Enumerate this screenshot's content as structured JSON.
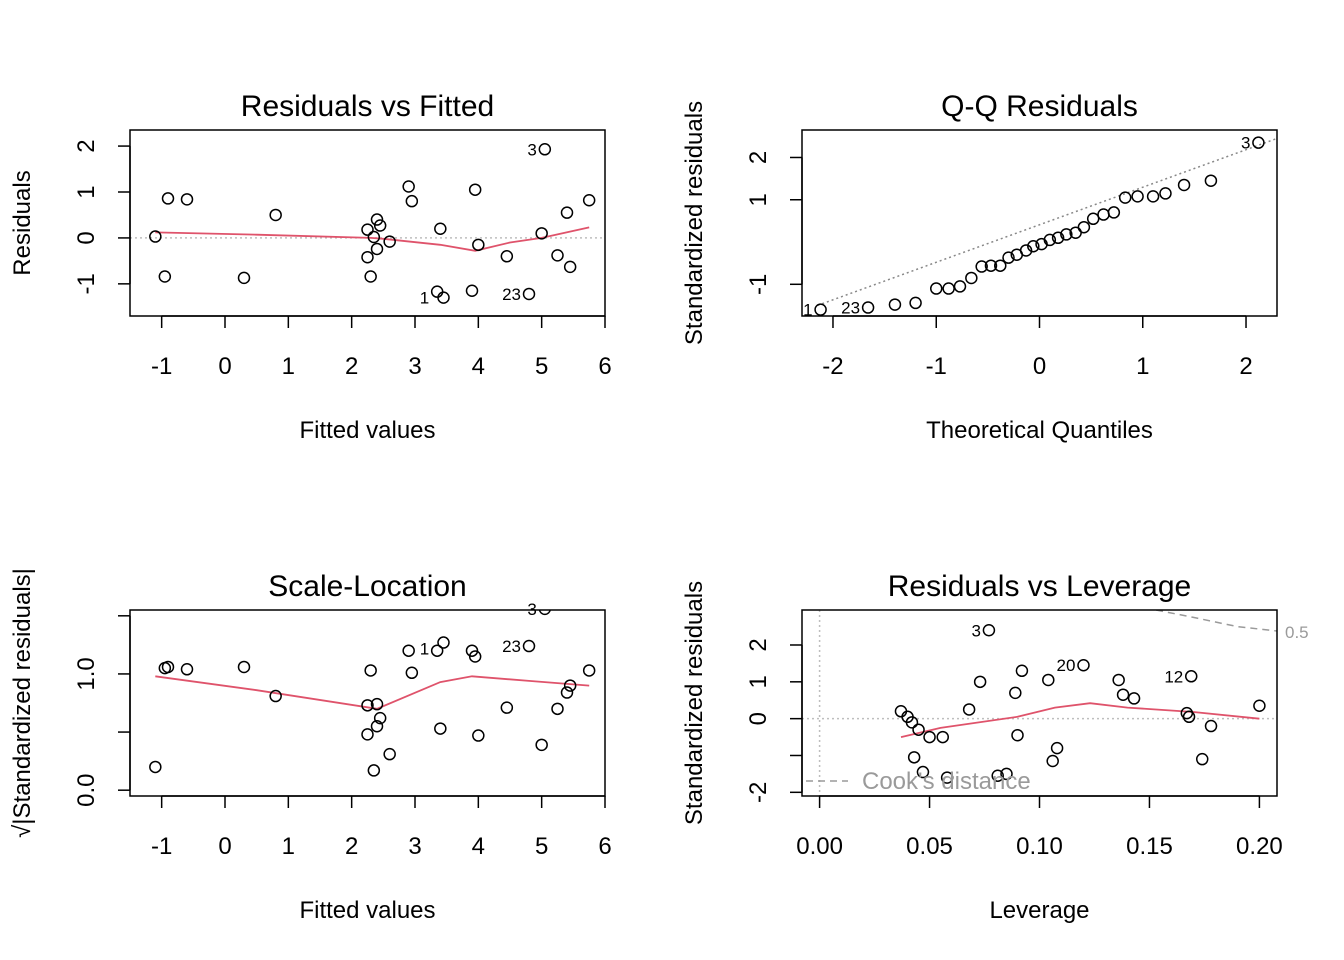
{
  "chart_data": [
    {
      "type": "scatter",
      "title": "Residuals vs Fitted",
      "xlabel": "Fitted values",
      "ylabel": "Residuals",
      "xlim": [
        -1.5,
        6.0
      ],
      "ylim": [
        -1.7,
        2.35
      ],
      "xticks": [
        -1,
        0,
        1,
        2,
        3,
        4,
        5,
        6
      ],
      "xtick_labels": [
        "-1",
        "0",
        "1",
        "2",
        "3",
        "4",
        "5",
        "6"
      ],
      "yticks": [
        -1,
        0,
        1,
        2
      ],
      "ytick_labels": [
        "-1",
        "0",
        "1",
        "2"
      ],
      "reference_line": {
        "y": 0,
        "style": "dotted",
        "color": "#bebebe"
      },
      "points": [
        [
          -1.1,
          0.03
        ],
        [
          -0.95,
          -0.84
        ],
        [
          -0.9,
          0.86
        ],
        [
          -0.6,
          0.84
        ],
        [
          0.3,
          -0.87
        ],
        [
          0.8,
          0.5
        ],
        [
          2.25,
          0.18
        ],
        [
          2.25,
          -0.42
        ],
        [
          2.3,
          -0.84
        ],
        [
          2.35,
          0.02
        ],
        [
          2.4,
          0.4
        ],
        [
          2.45,
          0.27
        ],
        [
          2.4,
          -0.24
        ],
        [
          2.6,
          -0.08
        ],
        [
          2.9,
          1.12
        ],
        [
          2.95,
          0.8
        ],
        [
          3.35,
          -1.17
        ],
        [
          3.45,
          -1.3
        ],
        [
          3.4,
          0.2
        ],
        [
          3.9,
          -1.15
        ],
        [
          3.95,
          1.05
        ],
        [
          4.0,
          -0.15
        ],
        [
          4.45,
          -0.4
        ],
        [
          4.8,
          -1.22
        ],
        [
          5.0,
          0.1
        ],
        [
          5.05,
          1.93
        ],
        [
          5.25,
          -0.38
        ],
        [
          5.4,
          0.55
        ],
        [
          5.45,
          -0.63
        ],
        [
          5.75,
          0.82
        ]
      ],
      "smoother": [
        [
          -1.1,
          0.12
        ],
        [
          0.5,
          0.07
        ],
        [
          2.3,
          0.0
        ],
        [
          2.5,
          -0.02
        ],
        [
          3.4,
          -0.15
        ],
        [
          3.95,
          -0.28
        ],
        [
          4.5,
          -0.1
        ],
        [
          5.0,
          0.0
        ],
        [
          5.75,
          0.23
        ]
      ],
      "smoother_color": "#DF536B",
      "annotations": [
        {
          "label": "3",
          "x": 5.05,
          "y": 1.93
        },
        {
          "label": "1",
          "x": 3.35,
          "y": -1.3
        },
        {
          "label": "23",
          "x": 4.8,
          "y": -1.22
        }
      ]
    },
    {
      "type": "scatter",
      "title": "Q-Q Residuals",
      "xlabel": "Theoretical Quantiles",
      "ylabel": "Standardized residuals",
      "xlim": [
        -2.3,
        2.3
      ],
      "ylim": [
        -1.75,
        2.65
      ],
      "xticks": [
        -2,
        -1,
        0,
        1,
        2
      ],
      "xtick_labels": [
        "-2",
        "-1",
        "0",
        "1",
        "2"
      ],
      "yticks": [
        -1,
        1,
        2
      ],
      "ytick_labels": [
        "-1",
        "1",
        "2"
      ],
      "reference_line": {
        "from": [
          -2.15,
          -1.5
        ],
        "to": [
          2.3,
          2.45
        ],
        "style": "dotted",
        "color": "#888888"
      },
      "points": [
        [
          -2.12,
          -1.6
        ],
        [
          -1.66,
          -1.55
        ],
        [
          -1.4,
          -1.48
        ],
        [
          -1.2,
          -1.44
        ],
        [
          -1.0,
          -1.1
        ],
        [
          -0.88,
          -1.1
        ],
        [
          -0.77,
          -1.05
        ],
        [
          -0.66,
          -0.85
        ],
        [
          -0.56,
          -0.58
        ],
        [
          -0.47,
          -0.56
        ],
        [
          -0.38,
          -0.56
        ],
        [
          -0.3,
          -0.37
        ],
        [
          -0.22,
          -0.3
        ],
        [
          -0.13,
          -0.2
        ],
        [
          -0.06,
          -0.1
        ],
        [
          0.02,
          -0.05
        ],
        [
          0.1,
          0.05
        ],
        [
          0.18,
          0.1
        ],
        [
          0.26,
          0.18
        ],
        [
          0.35,
          0.22
        ],
        [
          0.43,
          0.35
        ],
        [
          0.52,
          0.55
        ],
        [
          0.62,
          0.65
        ],
        [
          0.72,
          0.7
        ],
        [
          0.83,
          1.05
        ],
        [
          0.95,
          1.08
        ],
        [
          1.1,
          1.08
        ],
        [
          1.22,
          1.15
        ],
        [
          1.4,
          1.35
        ],
        [
          1.66,
          1.45
        ],
        [
          2.12,
          2.35
        ]
      ],
      "annotations": [
        {
          "label": "3",
          "x": 2.12,
          "y": 2.35
        },
        {
          "label": "1",
          "x": -2.12,
          "y": -1.6
        },
        {
          "label": "23",
          "x": -1.66,
          "y": -1.55
        }
      ]
    },
    {
      "type": "scatter",
      "title": "Scale-Location",
      "xlabel": "Fitted values",
      "ylabel": "√|Standardized residuals|",
      "xlim": [
        -1.5,
        6.0
      ],
      "ylim": [
        -0.05,
        1.55
      ],
      "xticks": [
        -1,
        0,
        1,
        2,
        3,
        4,
        5,
        6
      ],
      "xtick_labels": [
        "-1",
        "0",
        "1",
        "2",
        "3",
        "4",
        "5",
        "6"
      ],
      "yticks": [
        0.0,
        0.5,
        1.0,
        1.5
      ],
      "ytick_labels": [
        "0.0",
        "",
        "1.0",
        ""
      ],
      "points": [
        [
          -1.1,
          0.2
        ],
        [
          -0.95,
          1.05
        ],
        [
          -0.9,
          1.06
        ],
        [
          -0.6,
          1.04
        ],
        [
          0.3,
          1.06
        ],
        [
          0.8,
          0.81
        ],
        [
          2.25,
          0.73
        ],
        [
          2.25,
          0.48
        ],
        [
          2.3,
          1.03
        ],
        [
          2.35,
          0.17
        ],
        [
          2.4,
          0.74
        ],
        [
          2.45,
          0.62
        ],
        [
          2.4,
          0.55
        ],
        [
          2.6,
          0.31
        ],
        [
          2.9,
          1.2
        ],
        [
          2.95,
          1.01
        ],
        [
          3.35,
          1.2
        ],
        [
          3.45,
          1.27
        ],
        [
          3.4,
          0.53
        ],
        [
          3.9,
          1.2
        ],
        [
          3.95,
          1.15
        ],
        [
          4.0,
          0.47
        ],
        [
          4.45,
          0.71
        ],
        [
          4.8,
          1.24
        ],
        [
          5.0,
          0.39
        ],
        [
          5.05,
          1.56
        ],
        [
          5.25,
          0.7
        ],
        [
          5.4,
          0.84
        ],
        [
          5.45,
          0.9
        ],
        [
          5.75,
          1.03
        ]
      ],
      "smoother": [
        [
          -1.1,
          0.98
        ],
        [
          0.5,
          0.86
        ],
        [
          2.4,
          0.7
        ],
        [
          3.4,
          0.93
        ],
        [
          3.9,
          0.98
        ],
        [
          4.8,
          0.94
        ],
        [
          5.75,
          0.9
        ]
      ],
      "smoother_color": "#DF536B",
      "annotations": [
        {
          "label": "3",
          "x": 5.05,
          "y": 1.56
        },
        {
          "label": "1",
          "x": 3.35,
          "y": 1.22
        },
        {
          "label": "23",
          "x": 4.8,
          "y": 1.24
        }
      ]
    },
    {
      "type": "scatter",
      "title": "Residuals vs Leverage",
      "xlabel": "Leverage",
      "ylabel": "Standardized residuals",
      "xlim": [
        -0.008,
        0.208
      ],
      "ylim": [
        -2.1,
        2.95
      ],
      "xticks": [
        0.0,
        0.05,
        0.1,
        0.15,
        0.2
      ],
      "xtick_labels": [
        "0.00",
        "0.05",
        "0.10",
        "0.15",
        "0.20"
      ],
      "yticks": [
        -2,
        -1,
        0,
        1,
        2
      ],
      "ytick_labels": [
        "-2",
        "",
        "0",
        "1",
        "2"
      ],
      "reference_lines": [
        {
          "y": 0,
          "style": "dotted",
          "color": "#bebebe"
        },
        {
          "x": 0,
          "style": "dotted",
          "color": "#bebebe"
        }
      ],
      "cooks_distance": {
        "label": "0.5",
        "legend": "Cook's distance",
        "color": "#9a9a9a",
        "style": "dashed",
        "curve": [
          [
            0.153,
            2.95
          ],
          [
            0.17,
            2.75
          ],
          [
            0.19,
            2.5
          ],
          [
            0.208,
            2.38
          ]
        ]
      },
      "points": [
        [
          0.037,
          0.2
        ],
        [
          0.04,
          0.05
        ],
        [
          0.042,
          -0.1
        ],
        [
          0.043,
          -1.05
        ],
        [
          0.045,
          -0.3
        ],
        [
          0.047,
          -1.45
        ],
        [
          0.05,
          -0.5
        ],
        [
          0.056,
          -0.5
        ],
        [
          0.058,
          -1.6
        ],
        [
          0.068,
          0.25
        ],
        [
          0.073,
          1.0
        ],
        [
          0.077,
          2.4
        ],
        [
          0.081,
          -1.55
        ],
        [
          0.085,
          -1.5
        ],
        [
          0.089,
          0.7
        ],
        [
          0.09,
          -0.45
        ],
        [
          0.092,
          1.3
        ],
        [
          0.104,
          1.05
        ],
        [
          0.106,
          -1.15
        ],
        [
          0.108,
          -0.8
        ],
        [
          0.12,
          1.45
        ],
        [
          0.136,
          1.05
        ],
        [
          0.138,
          0.65
        ],
        [
          0.143,
          0.55
        ],
        [
          0.167,
          0.15
        ],
        [
          0.168,
          0.05
        ],
        [
          0.169,
          1.15
        ],
        [
          0.174,
          -1.1
        ],
        [
          0.178,
          -0.2
        ],
        [
          0.2,
          0.35
        ]
      ],
      "smoother": [
        [
          0.037,
          -0.5
        ],
        [
          0.055,
          -0.25
        ],
        [
          0.09,
          0.05
        ],
        [
          0.107,
          0.3
        ],
        [
          0.123,
          0.42
        ],
        [
          0.14,
          0.3
        ],
        [
          0.17,
          0.18
        ],
        [
          0.2,
          0.0
        ]
      ],
      "smoother_color": "#DF536B",
      "annotations": [
        {
          "label": "3",
          "x": 0.077,
          "y": 2.4
        },
        {
          "label": "20",
          "x": 0.12,
          "y": 1.45
        },
        {
          "label": "12",
          "x": 0.169,
          "y": 1.15
        }
      ]
    }
  ]
}
